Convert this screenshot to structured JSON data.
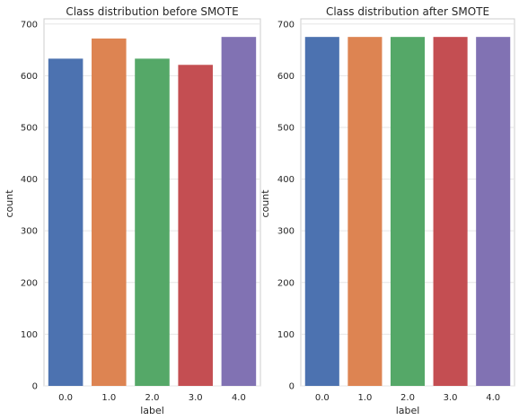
{
  "chart_data": [
    {
      "type": "bar",
      "title": "Class distribution before SMOTE",
      "xlabel": "label",
      "ylabel": "count",
      "categories": [
        "0.0",
        "1.0",
        "2.0",
        "3.0",
        "4.0"
      ],
      "values": [
        633,
        672,
        633,
        621,
        675
      ],
      "ylim": [
        0,
        710
      ],
      "yticks": [
        0,
        100,
        200,
        300,
        400,
        500,
        600,
        700
      ],
      "colors": [
        "#4c72b0",
        "#dd8452",
        "#55a868",
        "#c44e52",
        "#8172b3"
      ],
      "grid": true
    },
    {
      "type": "bar",
      "title": "Class distribution after SMOTE",
      "xlabel": "label",
      "ylabel": "count",
      "categories": [
        "0.0",
        "1.0",
        "2.0",
        "3.0",
        "4.0"
      ],
      "values": [
        675,
        675,
        675,
        675,
        675
      ],
      "ylim": [
        0,
        710
      ],
      "yticks": [
        0,
        100,
        200,
        300,
        400,
        500,
        600,
        700
      ],
      "colors": [
        "#4c72b0",
        "#dd8452",
        "#55a868",
        "#c44e52",
        "#8172b3"
      ],
      "grid": true
    }
  ]
}
